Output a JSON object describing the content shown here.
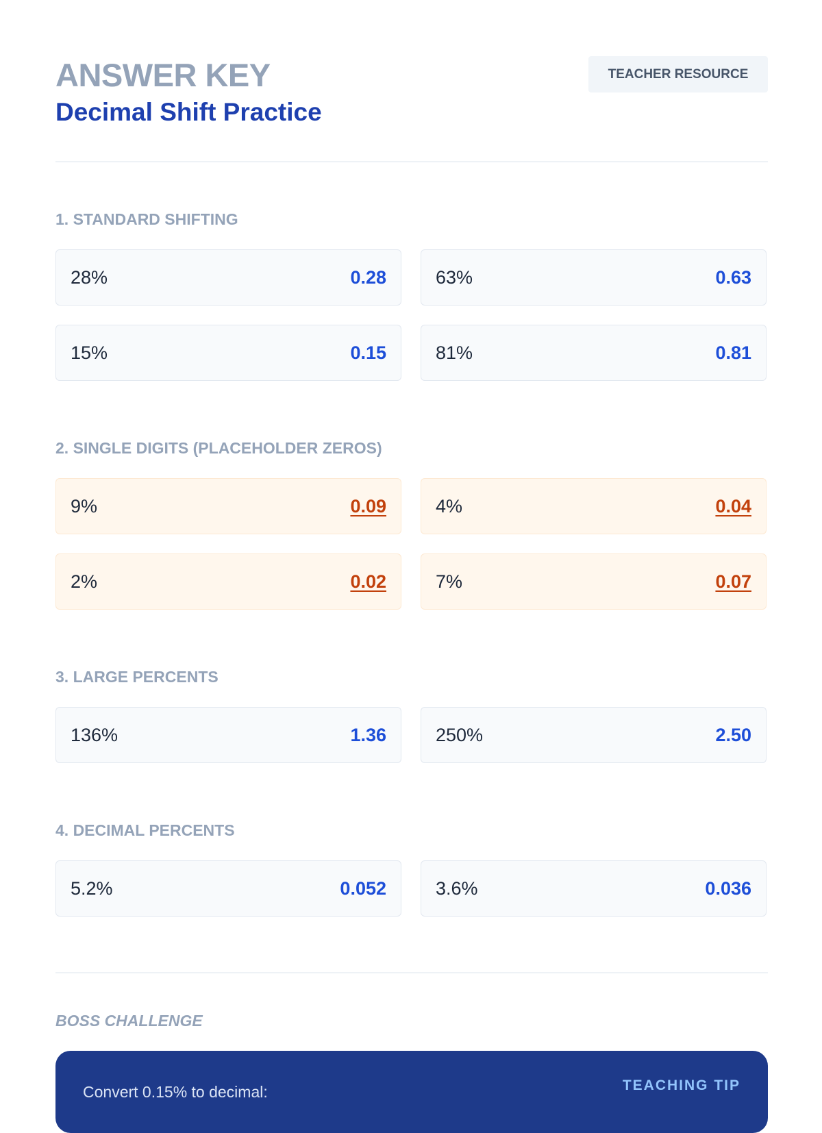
{
  "header": {
    "kicker": "ANSWER KEY",
    "title": "Decimal Shift Practice",
    "badge": "TEACHER RESOURCE"
  },
  "sections": [
    {
      "label": "1. STANDARD SHIFTING",
      "items": [
        {
          "problem": "28%",
          "answer": "0.28"
        },
        {
          "problem": "63%",
          "answer": "0.63"
        },
        {
          "problem": "15%",
          "answer": "0.15"
        },
        {
          "problem": "81%",
          "answer": "0.81"
        }
      ]
    },
    {
      "label": "2. SINGLE DIGITS (PLACEHOLDER ZEROS)",
      "items": [
        {
          "problem": "9%",
          "answer": "0.09"
        },
        {
          "problem": "4%",
          "answer": "0.04"
        },
        {
          "problem": "2%",
          "answer": "0.02"
        },
        {
          "problem": "7%",
          "answer": "0.07"
        }
      ]
    },
    {
      "label": "3. LARGE PERCENTS",
      "items": [
        {
          "problem": "136%",
          "answer": "1.36"
        },
        {
          "problem": "250%",
          "answer": "2.50"
        }
      ]
    },
    {
      "label": "4. DECIMAL PERCENTS",
      "items": [
        {
          "problem": "5.2%",
          "answer": "0.052"
        },
        {
          "problem": "3.6%",
          "answer": "0.036"
        }
      ]
    }
  ],
  "boss": {
    "label": "BOSS CHALLENGE",
    "question": "Convert 0.15% to decimal:",
    "tip_label": "TEACHING TIP"
  },
  "colors": {
    "accent": "#1e40af",
    "answer": "#1d4ed8",
    "highlight_answer": "#c2410c",
    "highlight_bg": "#fff7ed",
    "panel": "#1e3a8a"
  }
}
